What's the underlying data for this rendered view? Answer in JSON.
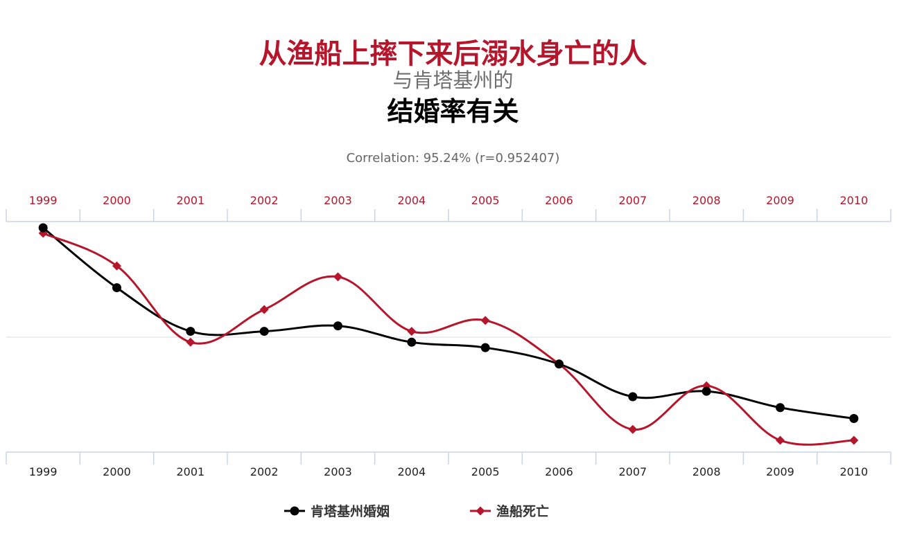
{
  "title": {
    "line1": "从渔船上摔下来后溺水身亡的人",
    "line2": "与肯塔基州的",
    "line3": "结婚率有关"
  },
  "subtitle": "Correlation: 95.24% (r=0.952407)",
  "colors": {
    "series1": "#000000",
    "series2": "#b5162b",
    "axis": "#c9d4e2",
    "top_tick_text": "#b5162b",
    "bottom_tick_text": "#222222"
  },
  "chart_data": {
    "type": "line",
    "x": [
      1999,
      2000,
      2001,
      2002,
      2003,
      2004,
      2005,
      2006,
      2007,
      2008,
      2009,
      2010
    ],
    "top_tick_labels": [
      "1999",
      "2000",
      "2001",
      "2002",
      "2003",
      "2004",
      "2005",
      "2006",
      "2007",
      "2008",
      "2009",
      "2010"
    ],
    "bottom_tick_labels": [
      "1999",
      "2000",
      "2001",
      "2002",
      "2003",
      "2004",
      "2005",
      "2006",
      "2007",
      "2008",
      "2009",
      "2010"
    ],
    "series": [
      {
        "name": "肯塔基州婚姻",
        "marker": "circle",
        "values": [
          0.975,
          0.865,
          0.785,
          0.785,
          0.795,
          0.765,
          0.755,
          0.725,
          0.665,
          0.675,
          0.645,
          0.625
        ]
      },
      {
        "name": "渔船死亡",
        "marker": "diamond",
        "values": [
          0.965,
          0.905,
          0.765,
          0.825,
          0.885,
          0.785,
          0.805,
          0.725,
          0.605,
          0.685,
          0.585,
          0.585
        ]
      }
    ],
    "y_scale": [
      0.585,
      0.975
    ],
    "grid": "horizontal",
    "legend": "bottom-center"
  }
}
